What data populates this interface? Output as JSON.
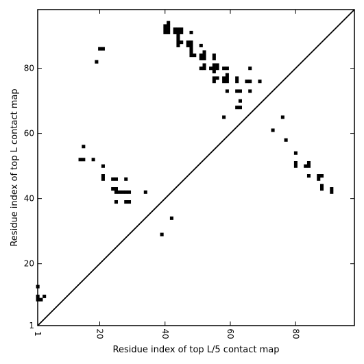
{
  "chart_data": {
    "type": "scatter",
    "marker": "square",
    "xlabel": "Residue index of top L/5 contact map",
    "ylabel": "Residue index of top L contact map",
    "xlim": [
      1,
      98
    ],
    "ylim": [
      1,
      98
    ],
    "xticks": [
      1,
      20,
      40,
      60,
      80
    ],
    "yticks": [
      1,
      20,
      40,
      60,
      80
    ],
    "diagonal": true,
    "grid": false,
    "colors": {
      "points": "#000000",
      "diagonal": "#000000",
      "background": "#ffffff"
    },
    "upper_points": [
      [
        40,
        91
      ],
      [
        40,
        92
      ],
      [
        40,
        93
      ],
      [
        41,
        91
      ],
      [
        41,
        92
      ],
      [
        41,
        93
      ],
      [
        41,
        94
      ],
      [
        43,
        91
      ],
      [
        43,
        92
      ],
      [
        44,
        91
      ],
      [
        44,
        92
      ],
      [
        45,
        91
      ],
      [
        45,
        92
      ],
      [
        44,
        90
      ],
      [
        44,
        89
      ],
      [
        44,
        88
      ],
      [
        45,
        88
      ],
      [
        44,
        87
      ],
      [
        48,
        91
      ],
      [
        47,
        87
      ],
      [
        47,
        88
      ],
      [
        48,
        87
      ],
      [
        48,
        88
      ],
      [
        48,
        86
      ],
      [
        48,
        85
      ],
      [
        48,
        84
      ],
      [
        49,
        84
      ],
      [
        51,
        87
      ],
      [
        51,
        84
      ],
      [
        51,
        83
      ],
      [
        52,
        83
      ],
      [
        52,
        84
      ],
      [
        52,
        85
      ],
      [
        51,
        80
      ],
      [
        52,
        80
      ],
      [
        52,
        81
      ],
      [
        54,
        80
      ],
      [
        55,
        80
      ],
      [
        55,
        79
      ],
      [
        55,
        81
      ],
      [
        56,
        80
      ],
      [
        56,
        81
      ],
      [
        55,
        83
      ],
      [
        55,
        84
      ],
      [
        55,
        77
      ],
      [
        55,
        76
      ],
      [
        56,
        77
      ],
      [
        58,
        80
      ],
      [
        59,
        80
      ],
      [
        58,
        77
      ],
      [
        58,
        76
      ],
      [
        59,
        76
      ],
      [
        59,
        77
      ],
      [
        59,
        78
      ],
      [
        59,
        73
      ],
      [
        62,
        77
      ],
      [
        62,
        76
      ],
      [
        62,
        73
      ],
      [
        63,
        73
      ],
      [
        62,
        68
      ],
      [
        63,
        68
      ],
      [
        63,
        70
      ],
      [
        65,
        76
      ],
      [
        66,
        76
      ],
      [
        66,
        80
      ],
      [
        66,
        73
      ],
      [
        69,
        76
      ],
      [
        58,
        65
      ],
      [
        19,
        82
      ],
      [
        20,
        86
      ],
      [
        21,
        86
      ]
    ],
    "lower_points": [
      [
        15,
        56
      ],
      [
        14,
        52
      ],
      [
        15,
        52
      ],
      [
        18,
        52
      ],
      [
        21,
        50
      ],
      [
        21,
        47
      ],
      [
        21,
        46
      ],
      [
        24,
        46
      ],
      [
        25,
        46
      ],
      [
        28,
        46
      ],
      [
        24,
        43
      ],
      [
        25,
        43
      ],
      [
        25,
        42
      ],
      [
        26,
        42
      ],
      [
        27,
        42
      ],
      [
        28,
        42
      ],
      [
        29,
        42
      ],
      [
        34,
        42
      ],
      [
        25,
        39
      ],
      [
        28,
        39
      ],
      [
        29,
        39
      ],
      [
        42,
        34
      ],
      [
        39,
        29
      ],
      [
        73,
        61
      ],
      [
        76,
        65
      ],
      [
        77,
        58
      ],
      [
        80,
        54
      ],
      [
        80,
        51
      ],
      [
        80,
        50
      ],
      [
        83,
        50
      ],
      [
        84,
        50
      ],
      [
        84,
        51
      ],
      [
        84,
        47
      ],
      [
        87,
        47
      ],
      [
        87,
        46
      ],
      [
        88,
        47
      ],
      [
        88,
        44
      ],
      [
        88,
        43
      ],
      [
        91,
        43
      ],
      [
        91,
        42
      ],
      [
        1,
        13
      ],
      [
        1,
        10
      ],
      [
        1,
        9
      ],
      [
        2,
        9
      ],
      [
        3,
        10
      ]
    ]
  }
}
